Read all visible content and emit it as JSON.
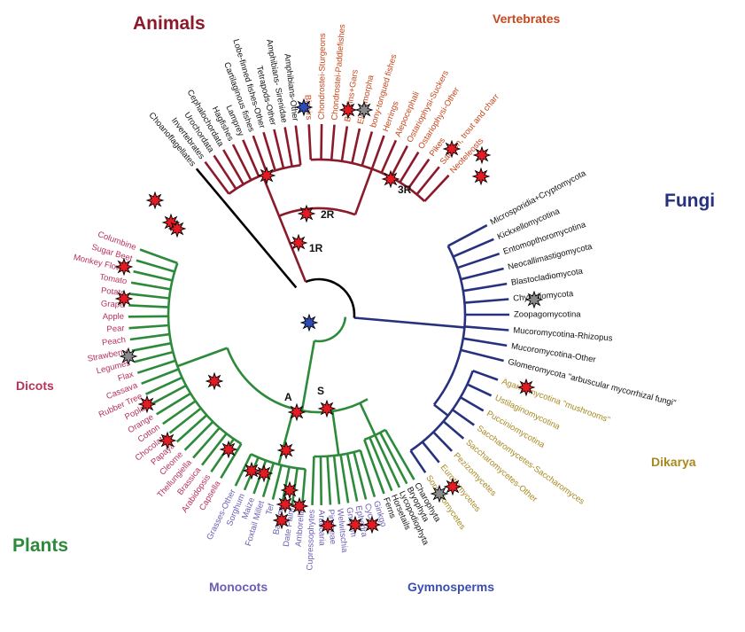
{
  "colors": {
    "animals": "#8b1a2b",
    "vertebrate_text": "#c8461c",
    "fungi": "#27327f",
    "plants": "#2e8a3b",
    "dicot_text": "#b8325a",
    "monocot_text": "#6b5fb5",
    "dikarya_text": "#a8881e",
    "root": "#000000",
    "star_red": "#e31b23",
    "star_gray": "#8a8a8a",
    "star_blue": "#2f4bb5"
  },
  "groups": {
    "animals": "Animals",
    "vertebrates": "Vertebrates",
    "fungi": "Fungi",
    "dikarya": "Dikarya",
    "plants": "Plants",
    "dicots": "Dicots",
    "monocots": "Monocots",
    "gymnosperms": "Gymnosperms"
  },
  "nodes": {
    "r1": "1R",
    "r2": "2R",
    "r3": "3R",
    "a": "A",
    "s": "S"
  },
  "leaves": {
    "animals": [
      "Choanoflagellates",
      "Invertebrates",
      "Urochordata",
      "Cephalochordata",
      "Hagfishes",
      "Lamprey",
      "Cartilaginous fishes",
      "Lobe-finned fishes-Other",
      "Tetrapods-Other",
      "Amphibians- Sirenidae",
      "Amphibians-Other"
    ],
    "vertebrates": [
      "Bichirs",
      "Chondrostei-Sturgeons",
      "Chondrostei-Paddlefishes",
      "Bowfins+Gars",
      "Elopomorpha",
      "bony-tongued fishes",
      "Herrings",
      "Alepocephali",
      "Ostariophysi-Suckers",
      "Ostariophysi-Other",
      "Pikes",
      "Salmon, trout and charr",
      "Neoteleosts"
    ],
    "fungi": [
      "Microsporidia+Cryptomycota",
      "Kickxellomycotina",
      "Entomopthoromycotina",
      "Neocallimastigomycota",
      "Blastocladiomycota",
      "Chytridiomycota",
      "Zoopagomycotina",
      "Mucoromycotina-Rhizopus",
      "Mucoromycotina-Other",
      "Glomeromycota \"arbuscular mycorrhizal fungi\""
    ],
    "dikarya": [
      "Agaricomycotina \"mushrooms\"",
      "Ustilaginomycotina",
      "Pucciniomycotina",
      "Saccharomycetes-Saccharomyces",
      "Saccharomycetes-Other",
      "Pezizomycetes",
      "Eurotiomycetes",
      "Sordariomycetes"
    ],
    "plants_other": [
      "Charophyta",
      "Bryophyta",
      "Lycopodiophyta",
      "Horsetails",
      "Ferns"
    ],
    "gymnosperms": [
      "Ginkgo",
      "Cycas",
      "Ephedra",
      "Gnetum",
      "Welwitschia",
      "Pinaceae",
      "Araucaria",
      "Cupressophytes"
    ],
    "monocots": [
      "Amborella",
      "Date Palm",
      "Banana",
      "Tef",
      "Foxtail Millet",
      "Maize",
      "Sorghum",
      "Grasses-Other"
    ],
    "dicots": [
      "Columbine",
      "Sugar Beet",
      "Monkey Flower",
      "Tomato",
      "Potato",
      "Grape",
      "Apple",
      "Pear",
      "Peach",
      "Strawberry",
      "Legumes",
      "Flax",
      "Cassava",
      "Rubber Tree",
      "Poplar",
      "Orange",
      "Cotton",
      "Chocolate",
      "Papaya",
      "Cleome",
      "Thellungiella",
      "Brassica",
      "Arabidopsis",
      "Capsella"
    ]
  }
}
